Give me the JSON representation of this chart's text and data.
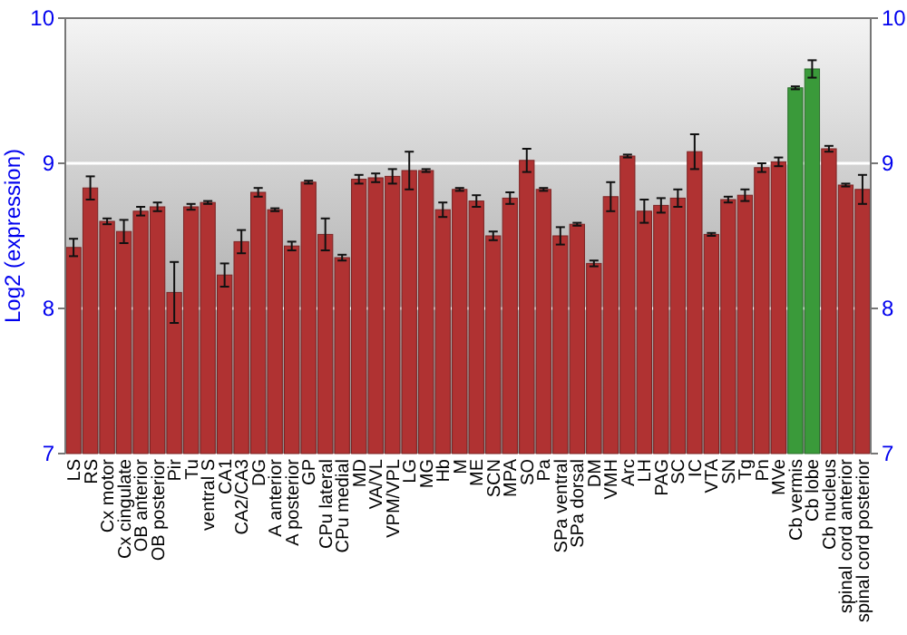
{
  "chart_data": {
    "type": "bar",
    "ylabel": "Log2 (expression)",
    "categories": [
      "LS",
      "RS",
      "Cx motor",
      "Cx cingulate",
      "OB anterior",
      "OB posterior",
      "Pir",
      "Tu",
      "ventral S",
      "CA1",
      "CA2/CA3",
      "DG",
      "A anterior",
      "A posterior",
      "GP",
      "CPu lateral",
      "CPu medial",
      "MD",
      "VA/VL",
      "VPM/VPL",
      "LG",
      "MG",
      "Hb",
      "M",
      "ME",
      "SCN",
      "MPA",
      "SO",
      "Pa",
      "SPa ventral",
      "SPa dorsal",
      "DM",
      "VMH",
      "Arc",
      "LH",
      "PAG",
      "SC",
      "IC",
      "VTA",
      "SN",
      "Tg",
      "Pn",
      "MVe",
      "Cb vermis",
      "Cb lobe",
      "Cb nucleus",
      "spinal cord anterior",
      "spinal cord posterior"
    ],
    "values": [
      8.42,
      8.83,
      8.6,
      8.53,
      8.67,
      8.7,
      8.11,
      8.7,
      8.73,
      8.23,
      8.46,
      8.8,
      8.68,
      8.43,
      8.87,
      8.51,
      8.35,
      8.89,
      8.9,
      8.91,
      8.95,
      8.95,
      8.68,
      8.82,
      8.74,
      8.5,
      8.76,
      9.02,
      8.82,
      8.5,
      8.58,
      8.31,
      8.77,
      9.05,
      8.67,
      8.71,
      8.76,
      9.08,
      8.51,
      8.75,
      8.78,
      8.97,
      9.01,
      9.52,
      9.65,
      9.1,
      8.85,
      8.82
    ],
    "errors": [
      0.06,
      0.08,
      0.02,
      0.08,
      0.03,
      0.03,
      0.21,
      0.02,
      0.01,
      0.08,
      0.08,
      0.03,
      0.01,
      0.03,
      0.01,
      0.11,
      0.02,
      0.03,
      0.03,
      0.05,
      0.13,
      0.01,
      0.05,
      0.01,
      0.04,
      0.03,
      0.04,
      0.08,
      0.01,
      0.06,
      0.01,
      0.02,
      0.1,
      0.01,
      0.08,
      0.05,
      0.06,
      0.12,
      0.01,
      0.02,
      0.04,
      0.03,
      0.03,
      0.01,
      0.06,
      0.02,
      0.01,
      0.1
    ],
    "colors": [
      "#b03232",
      "#b03232",
      "#b03232",
      "#b03232",
      "#b03232",
      "#b03232",
      "#b03232",
      "#b03232",
      "#b03232",
      "#b03232",
      "#b03232",
      "#b03232",
      "#b03232",
      "#b03232",
      "#b03232",
      "#b03232",
      "#b03232",
      "#b03232",
      "#b03232",
      "#b03232",
      "#b03232",
      "#b03232",
      "#b03232",
      "#b03232",
      "#b03232",
      "#b03232",
      "#b03232",
      "#b03232",
      "#b03232",
      "#b03232",
      "#b03232",
      "#b03232",
      "#b03232",
      "#b03232",
      "#b03232",
      "#b03232",
      "#b03232",
      "#b03232",
      "#b03232",
      "#b03232",
      "#b03232",
      "#b03232",
      "#b03232",
      "#3a9a3a",
      "#3a9a3a",
      "#b03232",
      "#b03232",
      "#b03232"
    ],
    "ylim": [
      7,
      10
    ],
    "yticks": [
      7,
      8,
      9,
      10
    ],
    "y2lim": [
      7,
      10
    ],
    "y2ticks": [
      7,
      8,
      9,
      10
    ],
    "grid": "y"
  }
}
